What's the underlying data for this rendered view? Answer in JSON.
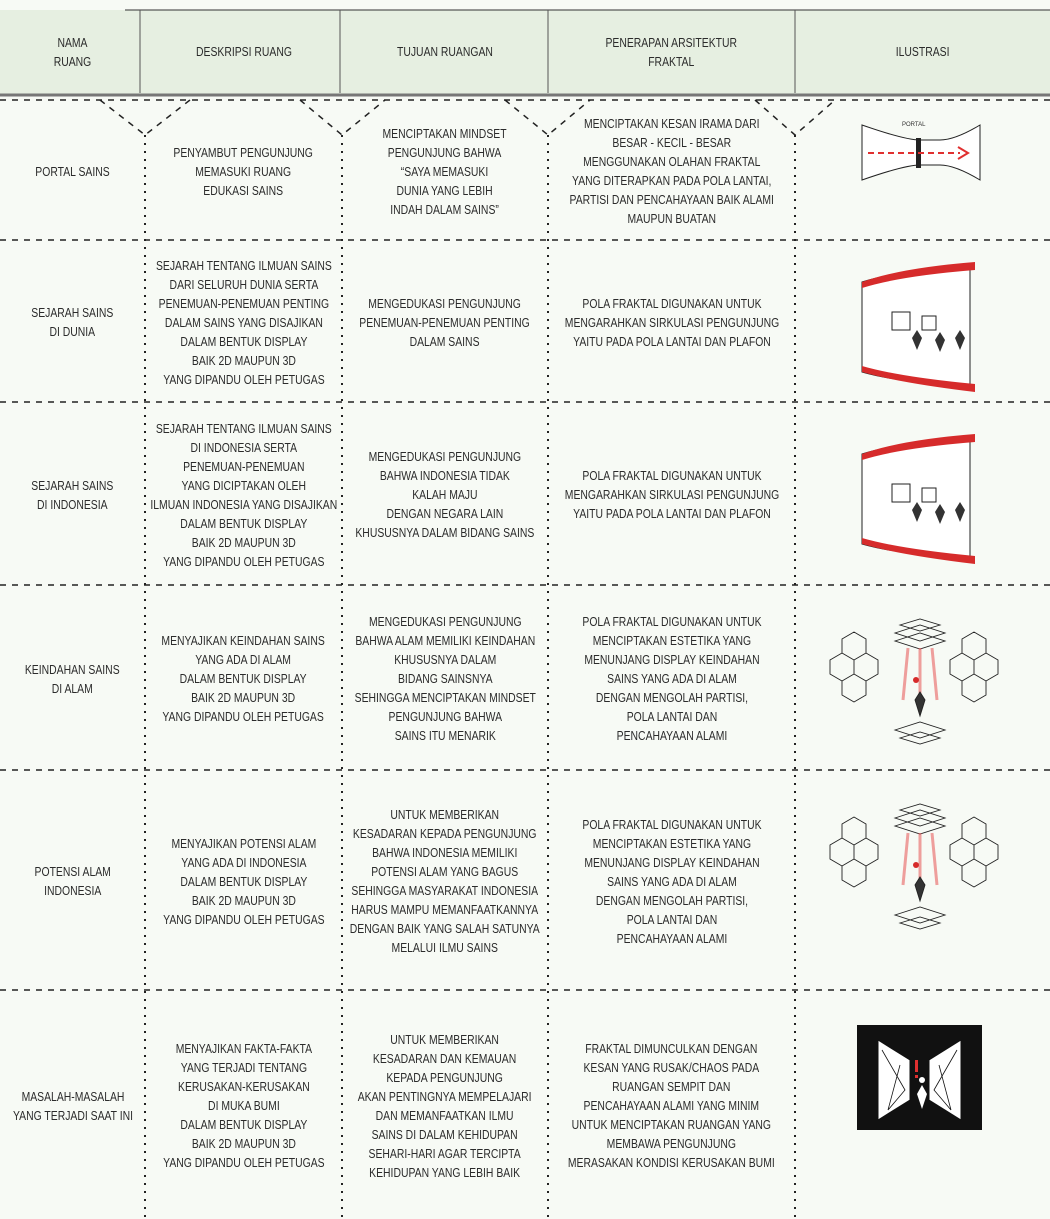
{
  "table": {
    "header": [
      [
        "NAMA",
        "RUANG"
      ],
      [
        "DESKRIPSI RUANG"
      ],
      [
        "TUJUAN RUANGAN"
      ],
      [
        "PENERAPAN ARSITEKTUR",
        "FRAKTAL"
      ],
      [
        "ILUSTRASI"
      ]
    ],
    "rows": [
      {
        "cells": [
          [
            "PORTAL SAINS"
          ],
          [
            "PENYAMBUT PENGUNJUNG",
            "MEMASUKI RUANG",
            "EDUKASI SAINS"
          ],
          [
            "MENCIPTAKAN MINDSET",
            "PENGUNJUNG BAHWA",
            "“SAYA MEMASUKI",
            "DUNIA YANG LEBIH",
            "INDAH DALAM SAINS”"
          ],
          [
            "MENCIPTAKAN KESAN IRAMA DARI",
            "BESAR - KECIL - BESAR",
            "MENGGUNAKAN OLAHAN FRAKTAL",
            "YANG DITERAPKAN PADA POLA LANTAI,",
            "PARTISI DAN PENCAHAYAAN BAIK ALAMI",
            "MAUPUN BUATAN"
          ]
        ],
        "illustration_label": "PORTAL"
      },
      {
        "cells": [
          [
            "SEJARAH SAINS",
            "DI DUNIA"
          ],
          [
            "SEJARAH TENTANG ILMUAN SAINS",
            "DARI SELURUH DUNIA SERTA",
            "PENEMUAN-PENEMUAN PENTING",
            "DALAM SAINS YANG DISAJIKAN",
            "DALAM BENTUK DISPLAY",
            "BAIK 2D MAUPUN 3D",
            "YANG DIPANDU OLEH PETUGAS"
          ],
          [
            "MENGEDUKASI PENGUNJUNG",
            "PENEMUAN-PENEMUAN PENTING",
            "DALAM SAINS"
          ],
          [
            "POLA FRAKTAL DIGUNAKAN UNTUK",
            "MENGARAHKAN SIRKULASI PENGUNJUNG",
            "YAITU PADA POLA LANTAI DAN PLAFON"
          ]
        ]
      },
      {
        "cells": [
          [
            "SEJARAH SAINS",
            "DI INDONESIA"
          ],
          [
            "SEJARAH TENTANG ILMUAN SAINS",
            "DI INDONESIA SERTA",
            "PENEMUAN-PENEMUAN",
            "YANG DICIPTAKAN OLEH",
            "ILMUAN INDONESIA YANG DISAJIKAN",
            "DALAM BENTUK DISPLAY",
            "BAIK 2D MAUPUN 3D",
            "YANG DIPANDU OLEH PETUGAS"
          ],
          [
            "MENGEDUKASI PENGUNJUNG",
            "BAHWA INDONESIA TIDAK",
            "KALAH MAJU",
            "DENGAN NEGARA LAIN",
            "KHUSUSNYA DALAM BIDANG SAINS"
          ],
          [
            "POLA FRAKTAL DIGUNAKAN UNTUK",
            "MENGARAHKAN SIRKULASI PENGUNJUNG",
            "YAITU PADA POLA LANTAI DAN PLAFON"
          ]
        ]
      },
      {
        "cells": [
          [
            "KEINDAHAN SAINS",
            "DI ALAM"
          ],
          [
            "MENYAJIKAN KEINDAHAN SAINS",
            "YANG ADA DI ALAM",
            "DALAM BENTUK DISPLAY",
            "BAIK 2D MAUPUN 3D",
            "YANG DIPANDU OLEH PETUGAS"
          ],
          [
            "MENGEDUKASI PENGUNJUNG",
            "BAHWA ALAM MEMILIKI KEINDAHAN",
            "KHUSUSNYA DALAM",
            "BIDANG SAINSNYA",
            "SEHINGGA MENCIPTAKAN MINDSET",
            "PENGUNJUNG BAHWA",
            "SAINS ITU MENARIK"
          ],
          [
            "POLA FRAKTAL DIGUNAKAN UNTUK",
            "MENCIPTAKAN ESTETIKA YANG",
            "MENUNJANG DISPLAY KEINDAHAN",
            "SAINS YANG ADA DI ALAM",
            "DENGAN MENGOLAH PARTISI,",
            "POLA LANTAI DAN",
            "PENCAHAYAAN ALAMI"
          ]
        ]
      },
      {
        "cells": [
          [
            "POTENSI ALAM",
            "INDONESIA"
          ],
          [
            "MENYAJIKAN POTENSI ALAM",
            "YANG ADA DI INDONESIA",
            "DALAM BENTUK DISPLAY",
            "BAIK 2D MAUPUN 3D",
            "YANG DIPANDU OLEH PETUGAS"
          ],
          [
            "UNTUK MEMBERIKAN",
            "KESADARAN KEPADA PENGUNJUNG",
            "BAHWA INDONESIA MEMILIKI",
            "POTENSI ALAM YANG BAGUS",
            "SEHINGGA MASYARAKAT INDONESIA",
            "HARUS MAMPU MEMANFAATKANNYA",
            "DENGAN BAIK YANG SALAH SATUNYA",
            "MELALUI ILMU SAINS"
          ],
          [
            "POLA FRAKTAL DIGUNAKAN UNTUK",
            "MENCIPTAKAN ESTETIKA YANG",
            "MENUNJANG DISPLAY KEINDAHAN",
            "SAINS YANG ADA DI ALAM",
            "DENGAN MENGOLAH PARTISI,",
            "POLA LANTAI DAN",
            "PENCAHAYAAN ALAMI"
          ]
        ]
      },
      {
        "cells": [
          [
            "MASALAH-MASALAH",
            "YANG TERJADI SAAT INI"
          ],
          [
            "MENYAJIKAN FAKTA-FAKTA",
            "YANG TERJADI TENTANG",
            "KERUSAKAN-KERUSAKAN",
            "DI MUKA BUMI",
            "DALAM BENTUK DISPLAY",
            "BAIK 2D MAUPUN 3D",
            "YANG DIPANDU OLEH PETUGAS"
          ],
          [
            "UNTUK MEMBERIKAN",
            "KESADARAN DAN KEMAUAN",
            "KEPADA PENGUNJUNG",
            "AKAN PENTINGNYA MEMPELAJARI",
            "DAN MEMANFAATKAN ILMU",
            "SAINS DI DALAM KEHIDUPAN",
            "SEHARI-HARI AGAR TERCIPTA",
            "KEHIDUPAN YANG LEBIH BAIK"
          ],
          [
            "FRAKTAL DIMUNCULKAN DENGAN",
            "KESAN YANG RUSAK/CHAOS PADA",
            "RUANGAN SEMPIT DAN",
            "PENCAHAYAAN ALAMI YANG MINIM",
            "UNTUK MENCIPTAKAN RUANGAN YANG",
            "MEMBAWA PENGUNJUNG",
            "MERASAKAN KONDISI KERUSAKAN BUMI"
          ]
        ]
      }
    ]
  }
}
